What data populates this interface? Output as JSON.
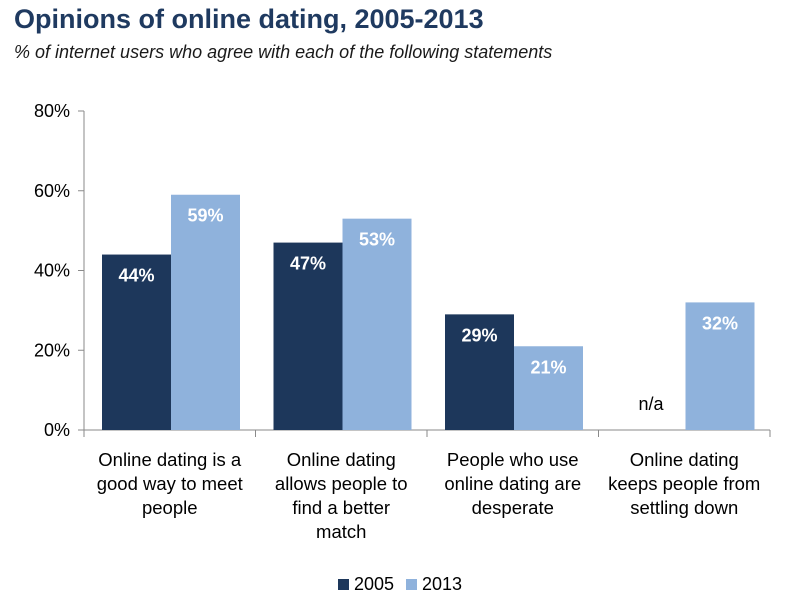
{
  "chart_data": {
    "type": "bar",
    "title": "Opinions of online dating, 2005-2013",
    "subtitle": "% of internet users who agree with each of the following statements",
    "categories": [
      "Online dating is a good way to meet people",
      "Online dating allows people to find a better match",
      "People who use online dating are desperate",
      "Online dating keeps people from settling down"
    ],
    "category_lines": [
      [
        "Online dating is a",
        "good way to meet",
        "people"
      ],
      [
        "Online dating",
        "allows people to",
        "find a better",
        "match"
      ],
      [
        "People who use",
        "online dating are",
        "desperate"
      ],
      [
        "Online dating",
        "keeps people from",
        "settling down"
      ]
    ],
    "series": [
      {
        "name": "2005",
        "color": "#1d375b",
        "values": [
          44,
          47,
          29,
          null
        ],
        "labels": [
          "44%",
          "47%",
          "29%",
          "n/a"
        ]
      },
      {
        "name": "2013",
        "color": "#8fb2dc",
        "values": [
          59,
          53,
          21,
          32
        ],
        "labels": [
          "59%",
          "53%",
          "21%",
          "32%"
        ]
      }
    ],
    "ylim": [
      0,
      80
    ],
    "yticks": [
      0,
      20,
      40,
      60,
      80
    ],
    "ytick_labels": [
      "0%",
      "20%",
      "40%",
      "60%",
      "80%"
    ],
    "grid": false,
    "legend_position": "bottom"
  }
}
